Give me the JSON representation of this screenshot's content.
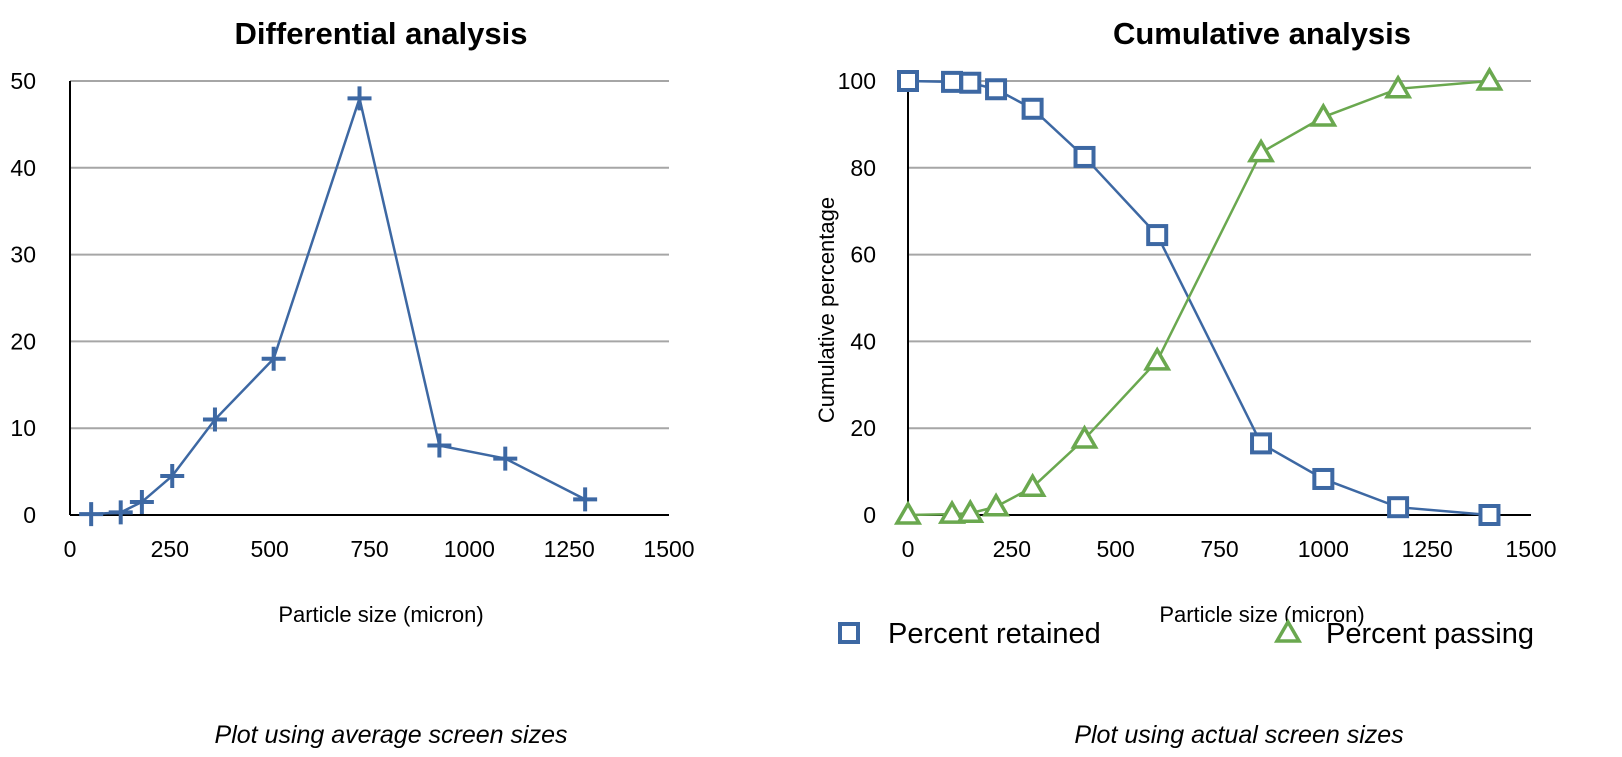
{
  "chart_data": [
    {
      "type": "line",
      "title": "Differential analysis",
      "xlabel": "Particle size (micron)",
      "ylabel": "",
      "caption": "Plot using average screen sizes",
      "xlim": [
        0,
        1500
      ],
      "ylim": [
        0,
        50
      ],
      "xticks": [
        0,
        250,
        500,
        750,
        1000,
        1250,
        1500
      ],
      "yticks": [
        0,
        10,
        20,
        30,
        40,
        50
      ],
      "grid": true,
      "legend": "none",
      "series": [
        {
          "marker": "plus",
          "color": "#3d68a3",
          "x": [
            53,
            127,
            180,
            256,
            363,
            510,
            725,
            925,
            1090,
            1290
          ],
          "y": [
            0.1,
            0.3,
            1.5,
            4.5,
            11,
            18,
            48,
            8,
            6.5,
            1.8
          ]
        }
      ]
    },
    {
      "type": "line",
      "title": "Cumulative analysis",
      "xlabel": "Particle size (micron)",
      "ylabel": "Cumulative percentage",
      "caption": "Plot using actual screen sizes",
      "xlim": [
        0,
        1500
      ],
      "ylim": [
        0,
        100
      ],
      "xticks": [
        0,
        250,
        500,
        750,
        1000,
        1250,
        1500
      ],
      "yticks": [
        0,
        20,
        40,
        60,
        80,
        100
      ],
      "grid": true,
      "legend": "bottom",
      "series": [
        {
          "name": "Percent retained",
          "marker": "square",
          "color": "#3d68a3",
          "x": [
            0,
            106,
            150,
            212,
            300,
            425,
            600,
            850,
            1000,
            1180,
            1400
          ],
          "y": [
            100,
            99.8,
            99.6,
            98.1,
            93.6,
            82.5,
            64.5,
            16.5,
            8.3,
            1.8,
            0
          ]
        },
        {
          "name": "Percent passing",
          "marker": "triangle",
          "color": "#6aa84f",
          "x": [
            0,
            106,
            150,
            212,
            300,
            425,
            600,
            850,
            1000,
            1180,
            1400
          ],
          "y": [
            0,
            0.2,
            0.4,
            1.9,
            6.4,
            17.5,
            35.5,
            83.5,
            91.7,
            98.2,
            100
          ]
        }
      ]
    }
  ]
}
